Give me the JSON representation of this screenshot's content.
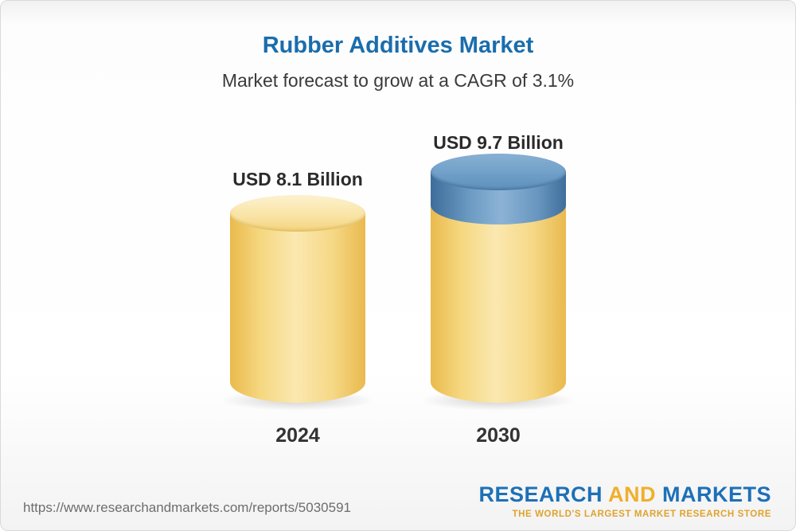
{
  "header": {
    "title": "Rubber Additives Market",
    "subtitle": "Market forecast to grow at a CAGR of 3.1%"
  },
  "chart_data": {
    "type": "bar",
    "title": "Rubber Additives Market",
    "subtitle": "Market forecast to grow at a CAGR of 3.1%",
    "categories": [
      "2024",
      "2030"
    ],
    "values": [
      8.1,
      9.7
    ],
    "value_labels": [
      "USD 8.1 Billion",
      "USD 9.7 Billion"
    ],
    "unit": "USD Billion",
    "cagr": "3.1%",
    "legend": "none",
    "grid": false,
    "colors": {
      "bar_2024_body": "#f6cf6b",
      "bar_2030_body": "#f6cf6b",
      "bar_2030_growth_segment": "#6f9fc8",
      "title_accent": "#1a6dad"
    }
  },
  "footer": {
    "url": "https://www.researchandmarkets.com/reports/5030591",
    "logo": {
      "research": "RESEARCH",
      "and": "AND",
      "markets": "MARKETS",
      "tagline": "THE WORLD'S LARGEST MARKET RESEARCH STORE"
    }
  }
}
